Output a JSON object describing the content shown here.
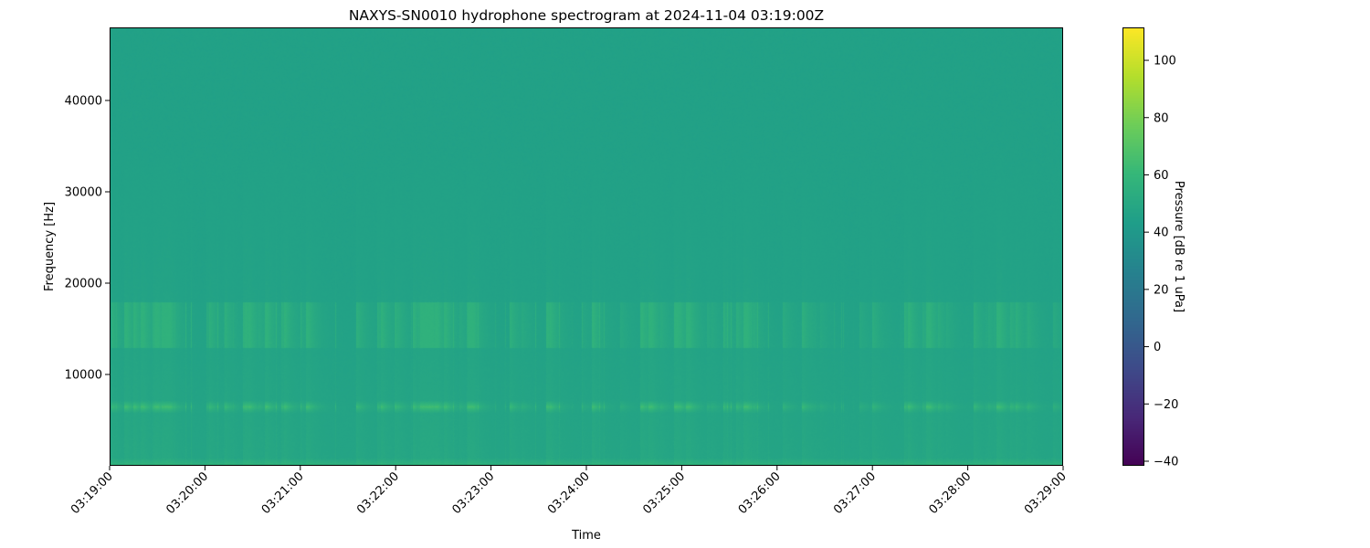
{
  "chart_data": {
    "type": "heatmap",
    "title": "NAXYS-SN0010 hydrophone spectrogram at 2024-11-04 03:19:00Z",
    "xlabel": "Time",
    "ylabel": "Frequency [Hz]",
    "x_ticks": [
      "03:19:00",
      "03:20:00",
      "03:21:00",
      "03:22:00",
      "03:23:00",
      "03:24:00",
      "03:25:00",
      "03:26:00",
      "03:27:00",
      "03:28:00",
      "03:29:00"
    ],
    "xlim": [
      "03:19:00",
      "03:29:00"
    ],
    "y_ticks": [
      10000,
      20000,
      30000,
      40000
    ],
    "ylim": [
      0,
      48000
    ],
    "colorbar": {
      "label": "Pressure [dB re 1 uPa]",
      "colormap": "viridis",
      "ticks": [
        -40,
        -20,
        0,
        20,
        40,
        60,
        80,
        100
      ],
      "range": [
        -41.6,
        111.5
      ]
    },
    "features": {
      "background_level_db": 45,
      "low_frequency_level_db": 55,
      "tonal_band_hz": 6500,
      "tonal_band_level_db": 60,
      "broadband_burst_range_hz": [
        13000,
        18000
      ],
      "burst_level_db": 58
    },
    "grid": false
  }
}
